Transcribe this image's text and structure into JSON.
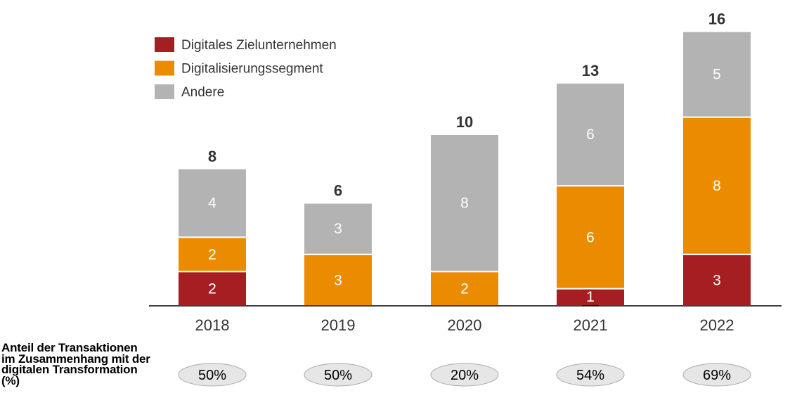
{
  "chart_data": {
    "type": "bar",
    "stacked": true,
    "categories": [
      "2018",
      "2019",
      "2020",
      "2021",
      "2022"
    ],
    "series": [
      {
        "name": "Digitales Zielunternehmen",
        "color": "#a51e22",
        "values": [
          2,
          0,
          0,
          1,
          3
        ]
      },
      {
        "name": "Digitalisierungssegment",
        "color": "#eb8c00",
        "values": [
          2,
          3,
          2,
          6,
          8
        ]
      },
      {
        "name": "Andere",
        "color": "#b3b3b3",
        "values": [
          4,
          3,
          8,
          6,
          5
        ]
      }
    ],
    "totals": [
      "8",
      "6",
      "10",
      "13",
      "16"
    ],
    "legend_position": "top-left",
    "share_label": "Anteil der Transaktionen im Zusammenhang mit der digitalen Transformation (%)",
    "shares": [
      "50%",
      "50%",
      "20%",
      "54%",
      "69%"
    ],
    "ylim": [
      0,
      16
    ]
  }
}
